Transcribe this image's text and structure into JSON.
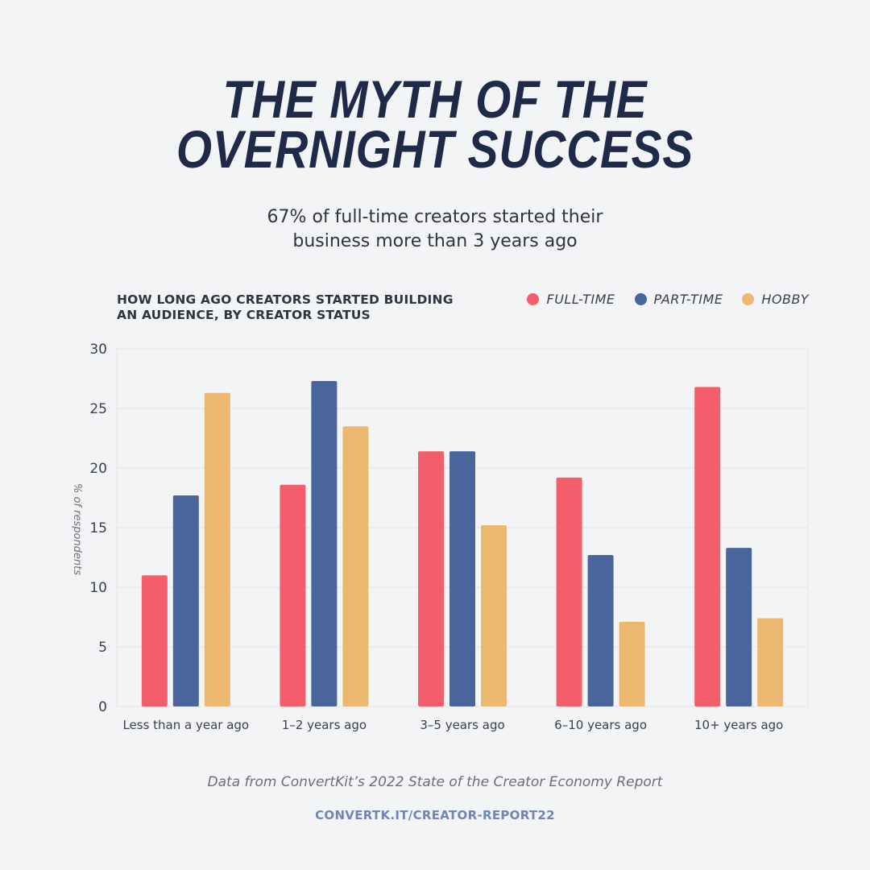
{
  "header": {
    "title_line1": "THE MYTH OF THE",
    "title_line2": "OVERNIGHT SUCCESS",
    "subtitle_line1": "67% of full-time creators started their",
    "subtitle_line2": "business more than 3 years ago"
  },
  "chart_heading_line1": "HOW LONG AGO CREATORS STARTED BUILDING",
  "chart_heading_line2": "AN AUDIENCE, BY CREATOR STATUS",
  "footer": {
    "source": "Data from ConvertKit’s 2022 State of the Creator Economy Report",
    "link": "CONVERTK.IT/CREATOR-REPORT22"
  },
  "chart_data": {
    "type": "bar",
    "title": "HOW LONG AGO CREATORS STARTED BUILDING AN AUDIENCE, BY CREATOR STATUS",
    "xlabel": "",
    "ylabel": "% of respondents",
    "ylim": [
      0,
      30
    ],
    "yticks": [
      0,
      5,
      10,
      15,
      20,
      25,
      30
    ],
    "grid": true,
    "legend_position": "top-right",
    "categories": [
      "Less than a year ago",
      "1–2 years ago",
      "3–5 years ago",
      "6–10 years ago",
      "10+ years ago"
    ],
    "series": [
      {
        "name": "FULL-TIME",
        "color": "#f45e6a",
        "values": [
          11.0,
          18.6,
          21.4,
          19.2,
          26.8
        ]
      },
      {
        "name": "PART-TIME",
        "color": "#4a649c",
        "values": [
          17.7,
          27.3,
          21.4,
          12.7,
          13.3
        ]
      },
      {
        "name": "HOBBY",
        "color": "#ecb86f",
        "values": [
          26.3,
          23.5,
          15.2,
          7.1,
          7.4
        ]
      }
    ]
  }
}
